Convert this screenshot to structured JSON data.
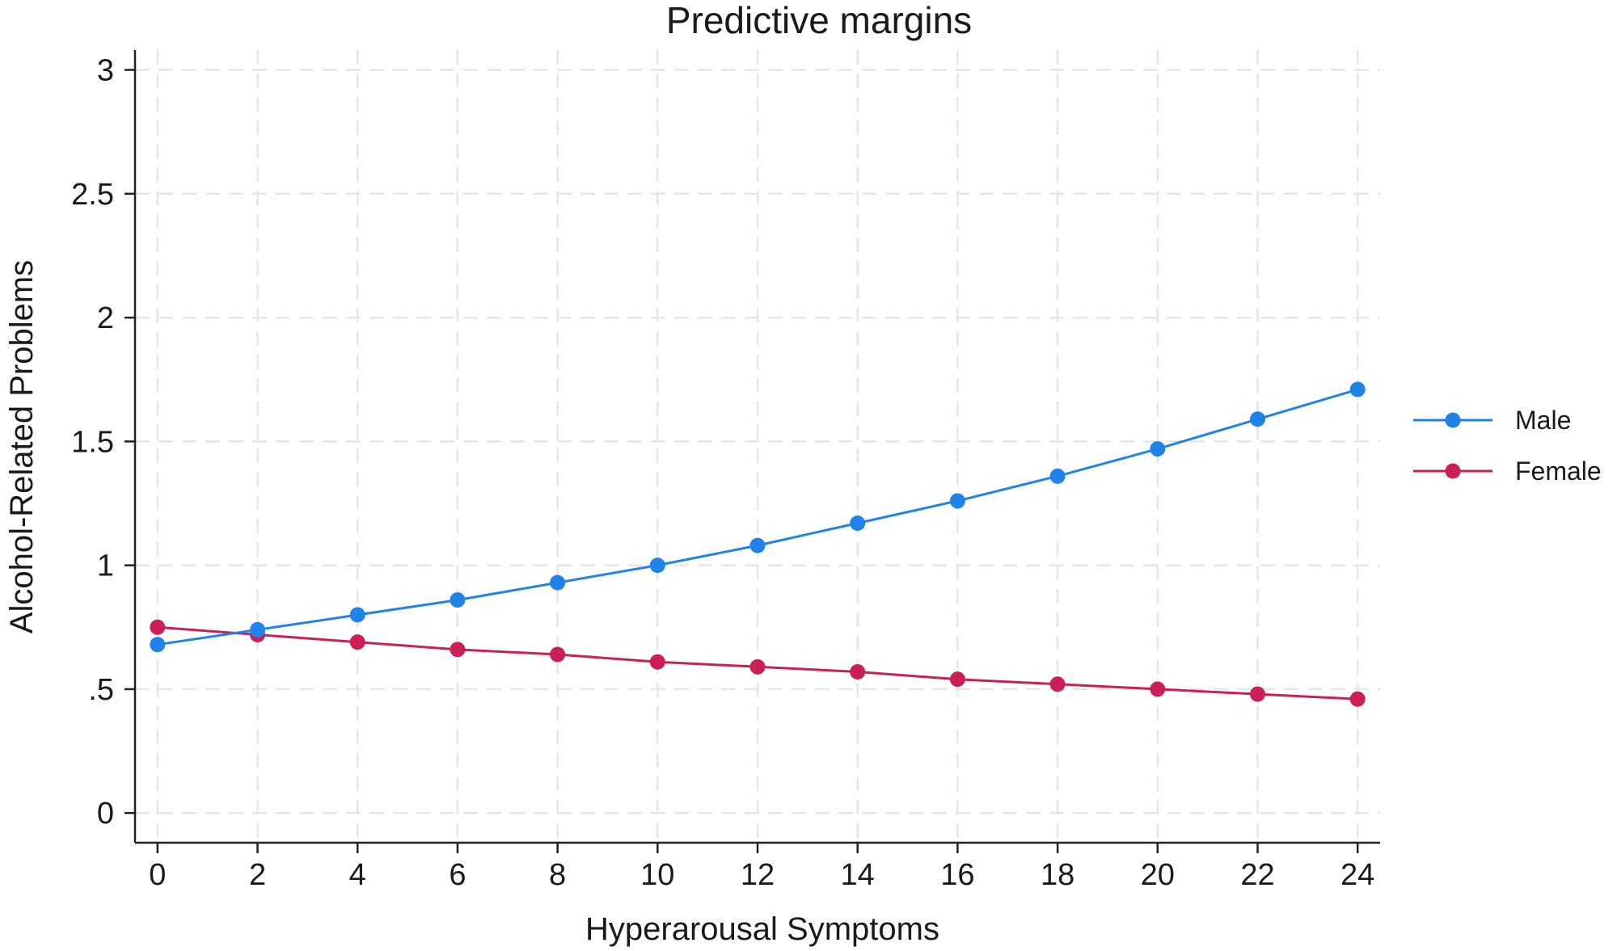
{
  "chart_data": {
    "type": "line",
    "title": "Predictive margins",
    "xlabel": "Hyperarousal Symptoms",
    "ylabel": "Alcohol-Related Problems",
    "x": [
      0,
      2,
      4,
      6,
      8,
      10,
      12,
      14,
      16,
      18,
      20,
      22,
      24
    ],
    "xticks": [
      0,
      2,
      4,
      6,
      8,
      10,
      12,
      14,
      16,
      18,
      20,
      22,
      24
    ],
    "xtick_labels": [
      "0",
      "2",
      "4",
      "6",
      "8",
      "10",
      "12",
      "14",
      "16",
      "18",
      "20",
      "22",
      "24"
    ],
    "yticks": [
      0,
      0.5,
      1,
      1.5,
      2,
      2.5,
      3
    ],
    "ytick_labels": [
      "0",
      ".5",
      "1",
      "1.5",
      "2",
      "2.5",
      "3"
    ],
    "xlim": [
      -0.45,
      24.45
    ],
    "ylim": [
      -0.12,
      3.08
    ],
    "grid": true,
    "legend_position": "right",
    "series": [
      {
        "name": "Male",
        "color": "#1f83e9",
        "values": [
          0.68,
          0.74,
          0.8,
          0.86,
          0.93,
          1.0,
          1.08,
          1.17,
          1.26,
          1.36,
          1.47,
          1.59,
          1.71
        ]
      },
      {
        "name": "Female",
        "color": "#cc1f55",
        "values": [
          0.75,
          0.72,
          0.69,
          0.66,
          0.64,
          0.61,
          0.59,
          0.57,
          0.54,
          0.52,
          0.5,
          0.48,
          0.46
        ]
      }
    ]
  }
}
